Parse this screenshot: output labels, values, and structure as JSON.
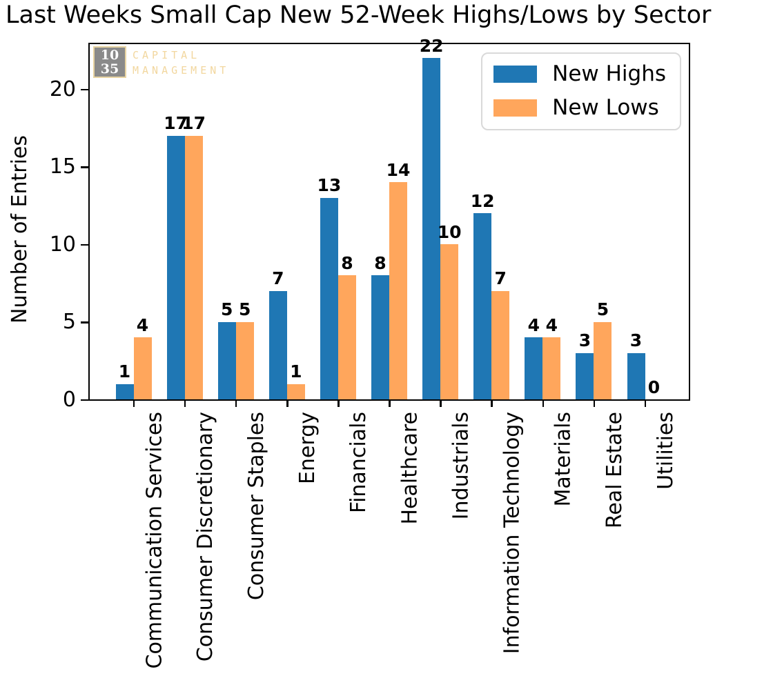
{
  "chart_data": {
    "type": "bar",
    "title": "Last Weeks Small Cap New 52-Week Highs/Lows by Sector",
    "xlabel": "",
    "ylabel": "Number of Entries",
    "categories": [
      "Communication Services",
      "Consumer Discretionary",
      "Consumer Staples",
      "Energy",
      "Financials",
      "Healthcare",
      "Industrials",
      "Information Technology",
      "Materials",
      "Real Estate",
      "Utilities"
    ],
    "series": [
      {
        "name": "New Highs",
        "color": "#1f77b4",
        "values": [
          1,
          17,
          5,
          7,
          13,
          8,
          22,
          12,
          4,
          3,
          3
        ]
      },
      {
        "name": "New Lows",
        "color": "#ffa65c",
        "values": [
          4,
          17,
          5,
          1,
          8,
          14,
          10,
          7,
          4,
          5,
          0
        ]
      }
    ],
    "yticks": [
      0,
      5,
      10,
      15,
      20
    ],
    "ylim": [
      0,
      23
    ],
    "bar_value_labels": true,
    "grid": false,
    "legend_position": "upper right"
  },
  "logo": {
    "number_top": "10",
    "number_bottom": "35",
    "word_top": "CAPITAL",
    "word_bottom": "MANAGEMENT"
  },
  "colors": {
    "axis": "#000000",
    "value_label": "#000000",
    "logo_box_bg": "#8a8a8a",
    "logo_box_border": "#e8d4a2",
    "logo_numbers": "#ffffff",
    "logo_words": "#f2d79f",
    "legend_border": "#d9d9d9"
  }
}
